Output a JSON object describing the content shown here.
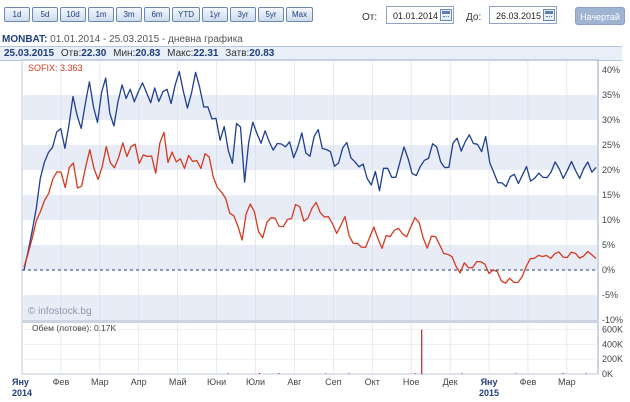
{
  "toolbar": {
    "periods": [
      "1d",
      "5d",
      "10d",
      "1m",
      "3m",
      "6m",
      "YTD",
      "1yr",
      "3yr",
      "5yr",
      "Max"
    ],
    "from_label": "От:",
    "from_value": "01.01.2014",
    "to_label": "До:",
    "to_value": "26.03.2015",
    "draw_label": "Начертай"
  },
  "header": {
    "symbol": "MONBAT:",
    "range_text": "01.01.2014 - 25.03.2015 - дневна графика",
    "date": "25.03.2015",
    "open_label": "Отв:",
    "open": "22.30",
    "low_label": "Мин:",
    "low": "20.83",
    "high_label": "Макс:",
    "high": "22.31",
    "close_label": "Затв:",
    "close": "20.83"
  },
  "colors": {
    "monbat": "#1f3f8f",
    "sofix": "#d63a1e",
    "volume": "#c0222e",
    "band": "#e8ecf7",
    "axis_text": "#444444"
  },
  "chart_data": {
    "type": "line",
    "legend": "SOFIX: 3.363",
    "watermark": "© infostock.bg",
    "y_ticks": [
      "40%",
      "35%",
      "30%",
      "25%",
      "20%",
      "15%",
      "10%",
      "5%",
      "0%",
      "-5%",
      "-10%"
    ],
    "ylim": [
      -10,
      42
    ],
    "x_ticks": [
      "Яну",
      "Фев",
      "Мар",
      "Апр",
      "Май",
      "Юни",
      "Юли",
      "Авг",
      "Сеп",
      "Окт",
      "Ное",
      "Дек",
      "Яну",
      "Фев",
      "Мар"
    ],
    "year_labels": [
      "2014",
      "2015"
    ],
    "series": [
      {
        "values": [
          0,
          3,
          8,
          13,
          18,
          21,
          24,
          25,
          27,
          28,
          25,
          29,
          34,
          31,
          29,
          33,
          37,
          33,
          30,
          35,
          38,
          32,
          29,
          33,
          37,
          35,
          36,
          33,
          36,
          38,
          35,
          33,
          37,
          34,
          35,
          36,
          34,
          37,
          39,
          36,
          33,
          35,
          39,
          37,
          33,
          32,
          30,
          31,
          26,
          28,
          24,
          22,
          29,
          28,
          18,
          26,
          29,
          27,
          26,
          28,
          25,
          24,
          26,
          25,
          24,
          26,
          23,
          24,
          27,
          24,
          23,
          26,
          28,
          25,
          24,
          23,
          21,
          22,
          24,
          25,
          23,
          22,
          20,
          21,
          19,
          17,
          19,
          16,
          21,
          20,
          18,
          19,
          22,
          24,
          22,
          20,
          19,
          20,
          22,
          23,
          25,
          24,
          22,
          21,
          20,
          25,
          27,
          24,
          25,
          27,
          26,
          25,
          23,
          27,
          22,
          19,
          17,
          18,
          17,
          18,
          19,
          18,
          19,
          20,
          18,
          19,
          19,
          18,
          19,
          20,
          21,
          20,
          19,
          20,
          21,
          20,
          19,
          20,
          21,
          20,
          21
        ]
      },
      {
        "values": [
          0,
          3,
          7,
          10,
          11,
          14,
          16,
          18,
          19,
          20,
          17,
          20,
          21,
          17,
          17,
          20,
          24,
          21,
          18,
          20,
          25,
          22,
          20,
          22,
          26,
          23,
          24,
          25,
          22,
          23,
          22,
          23,
          20,
          25,
          27,
          22,
          24,
          21,
          22,
          21,
          23,
          21,
          22,
          21,
          23,
          22,
          19,
          17,
          15,
          14,
          12,
          11,
          8,
          6,
          12,
          13,
          11,
          8,
          7,
          9,
          10,
          11,
          9,
          8,
          10,
          11,
          13,
          12,
          10,
          11,
          12,
          13,
          12,
          11,
          10,
          9,
          8,
          9,
          10,
          7,
          6,
          5,
          4,
          5,
          7,
          8,
          6,
          5,
          7,
          6,
          8,
          9,
          7,
          6,
          9,
          11,
          9,
          6,
          5,
          7,
          6,
          5,
          4,
          3,
          2,
          1,
          0,
          1,
          0,
          1,
          2,
          1,
          1,
          0,
          0,
          -1,
          -2,
          -2,
          -2,
          -3,
          -2,
          -1,
          0,
          2,
          3,
          3,
          2,
          3,
          3,
          3,
          3,
          3,
          3,
          3,
          3,
          3,
          3,
          3,
          3,
          3
        ]
      }
    ],
    "volume": {
      "label": "Обем (лотове): 0.17K",
      "y_ticks": [
        "600K",
        "400K",
        "200K",
        "0K"
      ],
      "ylim": [
        0,
        650
      ],
      "bars": [
        {
          "month": 5.3,
          "value": 10
        },
        {
          "month": 6.1,
          "value": 15
        },
        {
          "month": 6.6,
          "value": 12
        },
        {
          "month": 7.8,
          "value": 8
        },
        {
          "month": 8.4,
          "value": 10
        },
        {
          "month": 10.1,
          "value": 12
        },
        {
          "month": 10.27,
          "value": 600
        },
        {
          "month": 11.3,
          "value": 10
        },
        {
          "month": 12.7,
          "value": 8
        },
        {
          "month": 13.9,
          "value": 12
        },
        {
          "month": 14.5,
          "value": 10
        }
      ]
    }
  }
}
